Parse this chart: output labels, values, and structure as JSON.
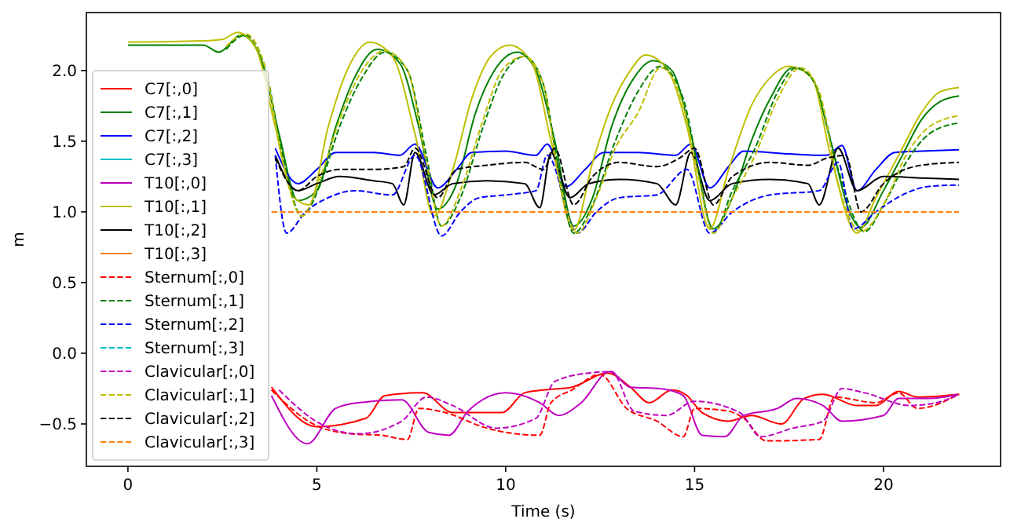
{
  "chart_data": {
    "type": "line",
    "xlabel": "Time (s)",
    "ylabel": "m",
    "xlim": [
      -1.1,
      23.1
    ],
    "ylim": [
      -0.8,
      2.41
    ],
    "xticks": [
      0,
      5,
      10,
      15,
      20
    ],
    "yticks": [
      {
        "value": -0.5,
        "label": "−0.5"
      },
      {
        "value": 0,
        "label": "0.0"
      },
      {
        "value": 0.5,
        "label": "0.5"
      },
      {
        "value": 1,
        "label": "1.0"
      },
      {
        "value": 1.5,
        "label": "1.5"
      },
      {
        "value": 2,
        "label": "2.0"
      }
    ],
    "grid": false,
    "legend": "bottom left",
    "marker": "none",
    "series": [
      {
        "name": "C7[:,0]",
        "color": "#ff0000",
        "line_style": "solid",
        "x": [
          3.8,
          5,
          6.3,
          6.8,
          7.8,
          8.6,
          9.9,
          10.5,
          11,
          11.75,
          12.7,
          13.3,
          13.8,
          14.4,
          14.8,
          15.2,
          15.9,
          16.5,
          17.3,
          17.9,
          18.4,
          19.3,
          19.8,
          20.4,
          20.9,
          22
        ],
        "values": [
          -0.24,
          -0.52,
          -0.46,
          -0.3,
          -0.28,
          -0.42,
          -0.42,
          -0.28,
          -0.26,
          -0.24,
          -0.14,
          -0.24,
          -0.35,
          -0.26,
          -0.3,
          -0.42,
          -0.48,
          -0.44,
          -0.5,
          -0.32,
          -0.29,
          -0.37,
          -0.37,
          -0.27,
          -0.31,
          -0.29
        ]
      },
      {
        "name": "C7[:,1]",
        "color": "#008000",
        "line_style": "solid",
        "x": [
          0,
          2,
          2.4,
          3,
          3.5,
          4,
          4.5,
          5,
          5.5,
          6,
          6.6,
          7.2,
          7.7,
          8.2,
          8.7,
          9.2,
          9.7,
          10.3,
          10.8,
          11.3,
          11.8,
          12.3,
          12.8,
          13.4,
          13.9,
          14.4,
          14.9,
          15.5,
          16,
          16.5,
          17,
          17.6,
          18.1,
          18.6,
          19.1,
          19.4,
          20,
          20.5,
          21,
          21.5,
          22
        ],
        "values": [
          2.18,
          2.18,
          2.13,
          2.25,
          2.1,
          1.55,
          1.08,
          1.15,
          1.6,
          1.95,
          2.15,
          2.05,
          1.6,
          1.02,
          1.2,
          1.7,
          2.0,
          2.13,
          2.0,
          1.5,
          0.9,
          1.1,
          1.6,
          1.95,
          2.07,
          2.0,
          1.55,
          0.88,
          1.1,
          1.5,
          1.8,
          2.02,
          1.95,
          1.5,
          1.0,
          0.89,
          1.15,
          1.4,
          1.65,
          1.78,
          1.82
        ]
      },
      {
        "name": "C7[:,2]",
        "color": "#0000ff",
        "line_style": "solid",
        "x": [
          3.9,
          4.5,
          5,
          5.5,
          6.5,
          7.2,
          7.6,
          8.2,
          8.7,
          9.1,
          10,
          10.8,
          11.1,
          11.6,
          12.1,
          12.6,
          13.5,
          14.5,
          14.9,
          15.4,
          15.9,
          16.3,
          17.5,
          18.5,
          18.9,
          19.3,
          19.8,
          20.3,
          21,
          22
        ],
        "values": [
          1.45,
          1.2,
          1.3,
          1.42,
          1.42,
          1.4,
          1.48,
          1.17,
          1.3,
          1.42,
          1.43,
          1.4,
          1.48,
          1.18,
          1.3,
          1.42,
          1.42,
          1.4,
          1.48,
          1.17,
          1.32,
          1.43,
          1.41,
          1.4,
          1.47,
          1.15,
          1.3,
          1.42,
          1.43,
          1.44
        ]
      },
      {
        "name": "C7[:,3]",
        "color": "#00bfbf",
        "line_style": "solid"
      },
      {
        "name": "T10[:,0]",
        "color": "#bf00bf",
        "line_style": "solid",
        "x": [
          3.8,
          4.75,
          5.5,
          6.1,
          7.25,
          7.96,
          8.5,
          9,
          10,
          10.9,
          11.4,
          12,
          12.75,
          13.3,
          14.1,
          14.7,
          15.2,
          15.8,
          16.3,
          17.2,
          17.7,
          18.4,
          18.9,
          20,
          20.4,
          21.2,
          22
        ],
        "values": [
          -0.3,
          -0.64,
          -0.39,
          -0.35,
          -0.33,
          -0.56,
          -0.58,
          -0.41,
          -0.28,
          -0.35,
          -0.44,
          -0.35,
          -0.13,
          -0.24,
          -0.25,
          -0.3,
          -0.58,
          -0.59,
          -0.44,
          -0.39,
          -0.32,
          -0.37,
          -0.48,
          -0.44,
          -0.32,
          -0.32,
          -0.29
        ]
      },
      {
        "name": "T10[:,1]",
        "color": "#bfbf00",
        "line_style": "solid",
        "x": [
          0,
          2,
          2.5,
          2.9,
          3.4,
          3.9,
          4.4,
          4.8,
          5.3,
          5.8,
          6.4,
          7,
          7.6,
          8.1,
          8.6,
          9.1,
          9.6,
          10.1,
          10.7,
          11.2,
          11.8,
          12.3,
          12.8,
          13.3,
          13.7,
          14.3,
          14.8,
          15.4,
          15.9,
          16.5,
          17,
          17.5,
          18.1,
          18.6,
          19.3,
          19.8,
          20.5,
          21,
          21.5,
          22
        ],
        "values": [
          2.2,
          2.21,
          2.22,
          2.27,
          2.15,
          1.6,
          1.1,
          1.05,
          1.6,
          2.0,
          2.2,
          2.1,
          1.55,
          0.97,
          1.3,
          1.8,
          2.1,
          2.18,
          2.05,
          1.5,
          0.87,
          1.35,
          1.75,
          2.0,
          2.11,
          2.0,
          1.6,
          0.88,
          1.3,
          1.75,
          1.95,
          2.03,
          1.95,
          1.4,
          0.85,
          1.1,
          1.45,
          1.7,
          1.85,
          1.88
        ]
      },
      {
        "name": "T10[:,2]",
        "color": "#000000",
        "line_style": "solid",
        "x": [
          3.9,
          4.5,
          5,
          5.6,
          6.5,
          7,
          7.3,
          7.6,
          8.1,
          8.6,
          9.5,
          10.5,
          10.9,
          11.2,
          11.7,
          12.2,
          13,
          14,
          14.5,
          14.9,
          15.4,
          16,
          17,
          18,
          18.3,
          18.8,
          19.3,
          20,
          21,
          22
        ],
        "values": [
          1.4,
          1.15,
          1.2,
          1.25,
          1.22,
          1.2,
          1.05,
          1.42,
          1.12,
          1.2,
          1.22,
          1.2,
          1.03,
          1.42,
          1.1,
          1.2,
          1.23,
          1.2,
          1.05,
          1.42,
          1.08,
          1.2,
          1.23,
          1.2,
          1.05,
          1.45,
          1.15,
          1.25,
          1.24,
          1.23
        ]
      },
      {
        "name": "T10[:,3]",
        "color": "#ff7f0e",
        "line_style": "solid"
      },
      {
        "name": "Sternum[:,0]",
        "color": "#ff0000",
        "line_style": "dashed",
        "x": [
          3.8,
          4.9,
          5.9,
          6.7,
          7.4,
          7.7,
          8.4,
          9.5,
          10.9,
          11.2,
          11.75,
          12.5,
          13.2,
          14,
          14.7,
          15,
          15.9,
          16.3,
          16.9,
          18.3,
          18.7,
          19.8,
          20.4,
          20.9,
          22
        ],
        "values": [
          -0.26,
          -0.5,
          -0.57,
          -0.58,
          -0.61,
          -0.39,
          -0.42,
          -0.53,
          -0.58,
          -0.35,
          -0.26,
          -0.15,
          -0.39,
          -0.48,
          -0.59,
          -0.39,
          -0.41,
          -0.46,
          -0.62,
          -0.61,
          -0.31,
          -0.35,
          -0.28,
          -0.39,
          -0.29
        ]
      },
      {
        "name": "Sternum[:,1]",
        "color": "#008000",
        "line_style": "dashed",
        "x": [
          2.6,
          3.1,
          3.6,
          4.1,
          4.6,
          5.1,
          5.6,
          6.2,
          6.8,
          7.4,
          7.9,
          8.3,
          8.8,
          9.4,
          9.9,
          10.5,
          11,
          11.4,
          11.8,
          12.3,
          12.9,
          13.5,
          14.1,
          14.7,
          15.1,
          15.5,
          16,
          16.6,
          17.2,
          17.7,
          18.2,
          18.8,
          19.5,
          20,
          20.6,
          21.2,
          22
        ],
        "values": [
          2.15,
          2.25,
          2.05,
          1.4,
          0.97,
          1.2,
          1.6,
          1.95,
          2.13,
          2.0,
          1.4,
          0.9,
          1.1,
          1.6,
          1.95,
          2.1,
          1.9,
          1.3,
          0.85,
          1.05,
          1.5,
          1.85,
          2.03,
          1.8,
          1.3,
          0.85,
          1.15,
          1.45,
          1.85,
          2.02,
          1.9,
          1.3,
          0.86,
          1.05,
          1.35,
          1.55,
          1.63
        ]
      },
      {
        "name": "Sternum[:,2]",
        "color": "#0000ff",
        "line_style": "dashed",
        "x": [
          3.9,
          4.2,
          4.7,
          5.3,
          6,
          7,
          7.6,
          8.3,
          8.8,
          9.3,
          10,
          10.8,
          11.1,
          11.9,
          12.4,
          13,
          14,
          14.8,
          15.4,
          16,
          17,
          18.3,
          18.8,
          19.2,
          19.8,
          20.5,
          21.2,
          22
        ],
        "values": [
          1.4,
          0.85,
          1.0,
          1.1,
          1.15,
          1.12,
          1.4,
          0.83,
          1.0,
          1.1,
          1.12,
          1.15,
          1.4,
          0.85,
          1.0,
          1.1,
          1.12,
          1.3,
          0.85,
          1.0,
          1.12,
          1.15,
          1.35,
          0.88,
          1.0,
          1.12,
          1.18,
          1.19
        ]
      },
      {
        "name": "Sternum[:,3]",
        "color": "#00bfbf",
        "line_style": "dashed"
      },
      {
        "name": "Clavicular[:,0]",
        "color": "#bf00bf",
        "line_style": "dashed",
        "x": [
          4,
          5.1,
          6.1,
          7.25,
          7.9,
          8.6,
          9.75,
          10.8,
          11.3,
          12.2,
          12.8,
          13.4,
          14.25,
          15,
          16.2,
          16.75,
          17.6,
          18.4,
          18.9,
          19.5,
          20.7,
          21.4,
          22
        ],
        "values": [
          -0.26,
          -0.5,
          -0.57,
          -0.48,
          -0.31,
          -0.37,
          -0.53,
          -0.46,
          -0.2,
          -0.14,
          -0.13,
          -0.41,
          -0.44,
          -0.34,
          -0.42,
          -0.59,
          -0.53,
          -0.48,
          -0.25,
          -0.28,
          -0.37,
          -0.35,
          -0.29
        ]
      },
      {
        "name": "Clavicular[:,1]",
        "color": "#bfbf00",
        "line_style": "dashed",
        "x": [
          2.6,
          3.1,
          3.6,
          4.1,
          4.6,
          5.1,
          5.6,
          6.2,
          6.8,
          7.4,
          7.9,
          8.3,
          8.8,
          9.4,
          9.9,
          10.5,
          11,
          11.4,
          11.9,
          12.4,
          12.9,
          13.5,
          14.1,
          14.7,
          15.1,
          15.5,
          16,
          16.6,
          17.2,
          17.8,
          18.3,
          18.8,
          19.4,
          20,
          20.6,
          21.2,
          22
        ],
        "values": [
          2.17,
          2.26,
          2.05,
          1.35,
          0.97,
          1.25,
          1.65,
          2.0,
          2.14,
          2.0,
          1.35,
          0.9,
          1.15,
          1.65,
          2.0,
          2.1,
          1.9,
          1.25,
          0.85,
          1.1,
          1.45,
          1.7,
          2.02,
          1.75,
          1.25,
          0.85,
          1.1,
          1.4,
          1.8,
          2.02,
          1.85,
          1.2,
          0.86,
          1.05,
          1.4,
          1.6,
          1.68
        ]
      },
      {
        "name": "Clavicular[:,2]",
        "color": "#000000",
        "line_style": "dashed",
        "x": [
          3.9,
          4.5,
          5,
          5.6,
          6.5,
          7.3,
          7.6,
          8.2,
          8.7,
          9.5,
          10.5,
          11,
          11.3,
          11.8,
          12.3,
          13,
          14,
          14.6,
          15,
          15.5,
          16,
          17,
          18,
          18.5,
          19,
          19.4,
          20,
          21,
          22
        ],
        "values": [
          1.38,
          1.15,
          1.25,
          1.3,
          1.3,
          1.32,
          1.45,
          1.1,
          1.3,
          1.33,
          1.35,
          1.3,
          1.45,
          1.05,
          1.25,
          1.35,
          1.32,
          1.38,
          1.45,
          1.05,
          1.25,
          1.35,
          1.33,
          1.38,
          1.4,
          1.0,
          1.2,
          1.33,
          1.35
        ]
      },
      {
        "name": "Clavicular[:,3]",
        "color": "#ff7f0e",
        "line_style": "dashed",
        "x": [
          3.8,
          22
        ],
        "values": [
          1,
          1
        ]
      }
    ]
  }
}
